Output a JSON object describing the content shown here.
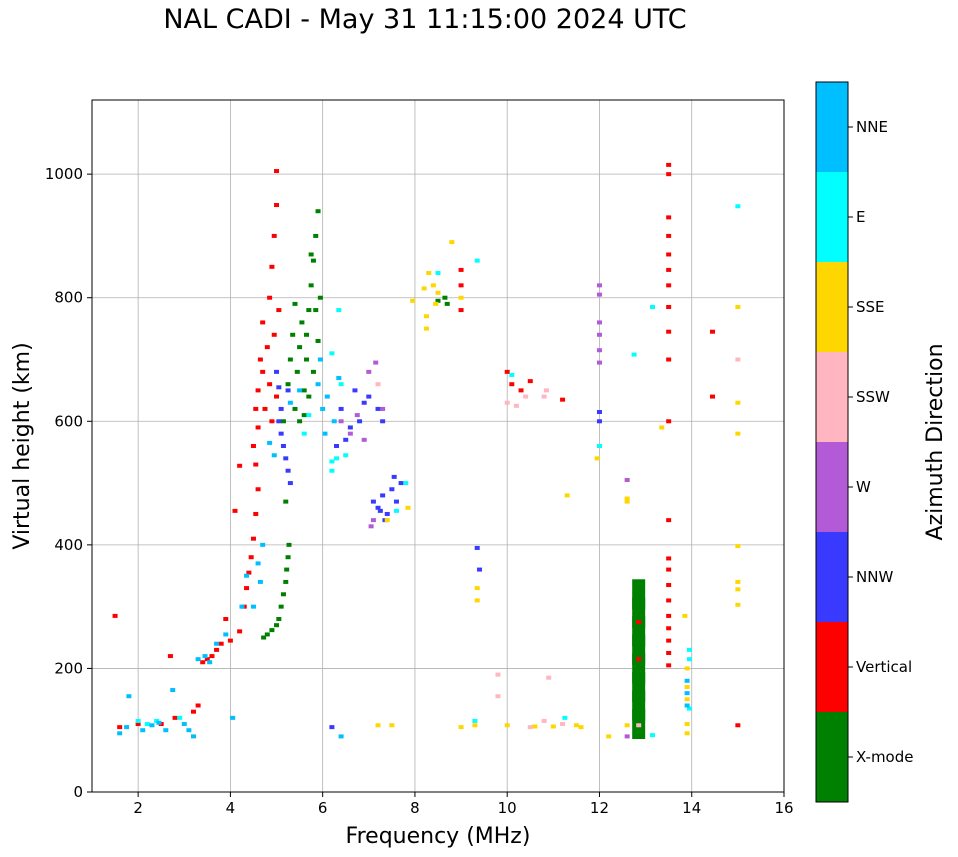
{
  "chart_data": {
    "type": "scatter",
    "title": "NAL CADI - May 31 11:15:00 2024 UTC",
    "xlabel": "Frequency (MHz)",
    "ylabel": "Virtual height (km)",
    "xlim": [
      1,
      16
    ],
    "ylim": [
      0,
      1120
    ],
    "xticks": [
      "2",
      "4",
      "6",
      "8",
      "10",
      "12",
      "14",
      "16"
    ],
    "xtick_values": [
      2,
      4,
      6,
      8,
      10,
      12,
      14,
      16
    ],
    "yticks": [
      "0",
      "200",
      "400",
      "600",
      "800",
      "1000"
    ],
    "ytick_values": [
      0,
      200,
      400,
      600,
      800,
      1000
    ],
    "grid": true,
    "colorbar": {
      "label": "Azimuth Direction",
      "categories": [
        {
          "name": "X-mode",
          "color": "#008000"
        },
        {
          "name": "Vertical",
          "color": "#ff0000"
        },
        {
          "name": "NNW",
          "color": "#3a3aff"
        },
        {
          "name": "W",
          "color": "#b35ad6"
        },
        {
          "name": "SSW",
          "color": "#ffb6c1"
        },
        {
          "name": "SSE",
          "color": "#ffd700"
        },
        {
          "name": "E",
          "color": "#00ffff"
        },
        {
          "name": "NNE",
          "color": "#00bfff"
        }
      ]
    },
    "series": [
      {
        "name": "X-mode",
        "points": [
          [
            4.72,
            250
          ],
          [
            4.8,
            255
          ],
          [
            4.9,
            262
          ],
          [
            5.0,
            270
          ],
          [
            5.05,
            280
          ],
          [
            5.1,
            300
          ],
          [
            5.15,
            320
          ],
          [
            5.2,
            340
          ],
          [
            5.22,
            360
          ],
          [
            5.25,
            380
          ],
          [
            5.27,
            400
          ],
          [
            5.2,
            470
          ],
          [
            5.15,
            600
          ],
          [
            5.25,
            660
          ],
          [
            5.3,
            700
          ],
          [
            5.35,
            740
          ],
          [
            5.4,
            620
          ],
          [
            5.45,
            680
          ],
          [
            5.5,
            720
          ],
          [
            5.55,
            760
          ],
          [
            5.6,
            650
          ],
          [
            5.65,
            700
          ],
          [
            5.7,
            780
          ],
          [
            5.75,
            820
          ],
          [
            5.8,
            860
          ],
          [
            5.85,
            900
          ],
          [
            5.9,
            940
          ],
          [
            5.6,
            610
          ],
          [
            5.7,
            640
          ],
          [
            5.8,
            680
          ],
          [
            5.9,
            730
          ],
          [
            5.95,
            800
          ],
          [
            5.5,
            600
          ],
          [
            5.75,
            870
          ],
          [
            5.85,
            780
          ],
          [
            5.65,
            740
          ],
          [
            5.4,
            790
          ],
          [
            8.5,
            795
          ],
          [
            8.7,
            790
          ],
          [
            8.65,
            800
          ],
          [
            12.85,
            110
          ],
          [
            12.85,
            140
          ],
          [
            12.85,
            170
          ],
          [
            12.85,
            200
          ],
          [
            12.85,
            230
          ],
          [
            12.85,
            260
          ],
          [
            12.85,
            290
          ],
          [
            12.85,
            320
          ]
        ]
      },
      {
        "name": "Vertical",
        "points": [
          [
            1.5,
            285
          ],
          [
            1.6,
            105
          ],
          [
            2.0,
            110
          ],
          [
            2.5,
            110
          ],
          [
            2.7,
            220
          ],
          [
            2.8,
            120
          ],
          [
            3.2,
            130
          ],
          [
            3.3,
            140
          ],
          [
            3.4,
            210
          ],
          [
            3.5,
            215
          ],
          [
            3.6,
            220
          ],
          [
            3.7,
            230
          ],
          [
            3.8,
            240
          ],
          [
            3.9,
            280
          ],
          [
            4.0,
            245
          ],
          [
            4.1,
            455
          ],
          [
            4.2,
            260
          ],
          [
            4.3,
            300
          ],
          [
            4.35,
            330
          ],
          [
            4.4,
            355
          ],
          [
            4.45,
            380
          ],
          [
            4.5,
            410
          ],
          [
            4.55,
            450
          ],
          [
            4.6,
            490
          ],
          [
            4.2,
            528
          ],
          [
            4.55,
            530
          ],
          [
            4.5,
            560
          ],
          [
            4.6,
            590
          ],
          [
            4.55,
            620
          ],
          [
            4.6,
            650
          ],
          [
            4.7,
            680
          ],
          [
            4.8,
            720
          ],
          [
            4.7,
            760
          ],
          [
            4.85,
            800
          ],
          [
            4.9,
            850
          ],
          [
            4.95,
            900
          ],
          [
            5.0,
            950
          ],
          [
            5.0,
            1005
          ],
          [
            4.75,
            620
          ],
          [
            4.85,
            660
          ],
          [
            4.65,
            700
          ],
          [
            4.95,
            740
          ],
          [
            5.05,
            780
          ],
          [
            4.9,
            600
          ],
          [
            5.0,
            640
          ],
          [
            9.0,
            780
          ],
          [
            9.0,
            820
          ],
          [
            9.0,
            845
          ],
          [
            10.0,
            680
          ],
          [
            10.1,
            660
          ],
          [
            10.3,
            650
          ],
          [
            10.5,
            665
          ],
          [
            11.2,
            635
          ],
          [
            13.5,
            1015
          ],
          [
            13.5,
            1000
          ],
          [
            13.5,
            930
          ],
          [
            13.5,
            900
          ],
          [
            13.5,
            870
          ],
          [
            13.5,
            845
          ],
          [
            13.5,
            820
          ],
          [
            13.5,
            785
          ],
          [
            13.5,
            745
          ],
          [
            13.5,
            700
          ],
          [
            13.5,
            600
          ],
          [
            13.5,
            440
          ],
          [
            13.5,
            378
          ],
          [
            13.5,
            360
          ],
          [
            13.5,
            335
          ],
          [
            13.5,
            310
          ],
          [
            13.5,
            285
          ],
          [
            13.5,
            265
          ],
          [
            13.5,
            245
          ],
          [
            13.5,
            225
          ],
          [
            13.5,
            205
          ],
          [
            12.85,
            275
          ],
          [
            12.85,
            215
          ],
          [
            14.45,
            745
          ],
          [
            14.45,
            640
          ],
          [
            15.0,
            108
          ]
        ]
      },
      {
        "name": "NNW",
        "points": [
          [
            5.05,
            600
          ],
          [
            5.1,
            580
          ],
          [
            5.15,
            560
          ],
          [
            5.2,
            540
          ],
          [
            5.25,
            520
          ],
          [
            5.3,
            500
          ],
          [
            5.05,
            655
          ],
          [
            5.25,
            650
          ],
          [
            5.1,
            620
          ],
          [
            5.0,
            680
          ],
          [
            6.3,
            560
          ],
          [
            6.5,
            570
          ],
          [
            6.6,
            590
          ],
          [
            6.8,
            600
          ],
          [
            6.9,
            630
          ],
          [
            7.0,
            640
          ],
          [
            6.4,
            620
          ],
          [
            6.7,
            650
          ],
          [
            7.2,
            620
          ],
          [
            7.3,
            600
          ],
          [
            7.1,
            470
          ],
          [
            7.2,
            460
          ],
          [
            7.3,
            480
          ],
          [
            7.4,
            450
          ],
          [
            7.5,
            490
          ],
          [
            7.6,
            470
          ],
          [
            7.7,
            500
          ],
          [
            7.35,
            440
          ],
          [
            7.55,
            510
          ],
          [
            7.25,
            455
          ],
          [
            6.2,
            105
          ],
          [
            9.35,
            395
          ],
          [
            9.4,
            360
          ],
          [
            12.0,
            615
          ],
          [
            12.0,
            600
          ]
        ]
      },
      {
        "name": "W",
        "points": [
          [
            6.4,
            600
          ],
          [
            6.6,
            580
          ],
          [
            6.75,
            610
          ],
          [
            6.9,
            570
          ],
          [
            7.0,
            680
          ],
          [
            7.15,
            695
          ],
          [
            7.3,
            620
          ],
          [
            7.1,
            440
          ],
          [
            7.05,
            430
          ],
          [
            12.0,
            820
          ],
          [
            12.0,
            805
          ],
          [
            12.0,
            760
          ],
          [
            12.0,
            740
          ],
          [
            12.0,
            715
          ],
          [
            12.0,
            695
          ],
          [
            12.6,
            505
          ],
          [
            12.6,
            90
          ]
        ]
      },
      {
        "name": "SSW",
        "points": [
          [
            7.2,
            660
          ],
          [
            10.0,
            630
          ],
          [
            10.2,
            625
          ],
          [
            10.4,
            640
          ],
          [
            10.8,
            640
          ],
          [
            10.85,
            650
          ],
          [
            10.9,
            185
          ],
          [
            10.8,
            115
          ],
          [
            9.8,
            190
          ],
          [
            9.8,
            155
          ],
          [
            15.0,
            700
          ],
          [
            12.85,
            108
          ],
          [
            11.2,
            110
          ],
          [
            10.5,
            105
          ]
        ]
      },
      {
        "name": "SSE",
        "points": [
          [
            7.4,
            440
          ],
          [
            7.85,
            460
          ],
          [
            7.95,
            795
          ],
          [
            8.2,
            815
          ],
          [
            8.3,
            840
          ],
          [
            8.25,
            770
          ],
          [
            8.25,
            750
          ],
          [
            8.4,
            820
          ],
          [
            8.45,
            790
          ],
          [
            8.5,
            808
          ],
          [
            8.8,
            890
          ],
          [
            9.0,
            800
          ],
          [
            9.35,
            330
          ],
          [
            9.35,
            310
          ],
          [
            11.95,
            540
          ],
          [
            12.6,
            470
          ],
          [
            12.6,
            475
          ],
          [
            13.35,
            590
          ],
          [
            15.0,
            785
          ],
          [
            15.0,
            630
          ],
          [
            15.0,
            580
          ],
          [
            15.0,
            398
          ],
          [
            15.0,
            340
          ],
          [
            15.0,
            328
          ],
          [
            15.0,
            303
          ],
          [
            13.9,
            150
          ],
          [
            13.9,
            170
          ],
          [
            13.9,
            200
          ],
          [
            13.9,
            110
          ],
          [
            13.9,
            95
          ],
          [
            7.2,
            108
          ],
          [
            7.5,
            108
          ],
          [
            9.0,
            105
          ],
          [
            9.3,
            108
          ],
          [
            10.0,
            108
          ],
          [
            10.6,
            106
          ],
          [
            11.0,
            106
          ],
          [
            11.5,
            108
          ],
          [
            11.6,
            105
          ],
          [
            12.2,
            90
          ],
          [
            12.6,
            108
          ],
          [
            13.85,
            285
          ],
          [
            11.3,
            480
          ]
        ]
      },
      {
        "name": "E",
        "points": [
          [
            2.0,
            115
          ],
          [
            2.2,
            110
          ],
          [
            2.4,
            115
          ],
          [
            2.9,
            120
          ],
          [
            5.6,
            580
          ],
          [
            5.7,
            610
          ],
          [
            6.2,
            535
          ],
          [
            6.3,
            540
          ],
          [
            6.2,
            520
          ],
          [
            6.5,
            545
          ],
          [
            6.4,
            660
          ],
          [
            6.2,
            710
          ],
          [
            6.35,
            780
          ],
          [
            7.6,
            455
          ],
          [
            7.8,
            500
          ],
          [
            8.5,
            840
          ],
          [
            9.35,
            860
          ],
          [
            9.3,
            115
          ],
          [
            10.1,
            675
          ],
          [
            11.25,
            120
          ],
          [
            12.75,
            708
          ],
          [
            13.15,
            785
          ],
          [
            13.15,
            92
          ],
          [
            13.95,
            230
          ],
          [
            13.95,
            215
          ],
          [
            13.95,
            135
          ],
          [
            15.0,
            948
          ],
          [
            12.0,
            560
          ]
        ]
      },
      {
        "name": "NNE",
        "points": [
          [
            1.6,
            95
          ],
          [
            1.75,
            105
          ],
          [
            1.8,
            155
          ],
          [
            2.1,
            100
          ],
          [
            2.3,
            108
          ],
          [
            2.45,
            112
          ],
          [
            2.6,
            100
          ],
          [
            2.75,
            165
          ],
          [
            3.0,
            110
          ],
          [
            3.1,
            100
          ],
          [
            3.2,
            90
          ],
          [
            3.3,
            215
          ],
          [
            3.45,
            220
          ],
          [
            3.55,
            210
          ],
          [
            3.7,
            240
          ],
          [
            3.9,
            255
          ],
          [
            4.05,
            120
          ],
          [
            4.25,
            300
          ],
          [
            4.35,
            350
          ],
          [
            4.5,
            300
          ],
          [
            4.6,
            370
          ],
          [
            4.65,
            340
          ],
          [
            4.7,
            400
          ],
          [
            5.3,
            630
          ],
          [
            5.5,
            650
          ],
          [
            5.9,
            660
          ],
          [
            6.0,
            620
          ],
          [
            6.1,
            640
          ],
          [
            6.25,
            600
          ],
          [
            6.05,
            580
          ],
          [
            6.35,
            670
          ],
          [
            5.95,
            700
          ],
          [
            4.85,
            565
          ],
          [
            4.95,
            545
          ],
          [
            6.4,
            90
          ],
          [
            13.9,
            180
          ],
          [
            13.9,
            160
          ],
          [
            13.9,
            140
          ]
        ]
      }
    ]
  }
}
